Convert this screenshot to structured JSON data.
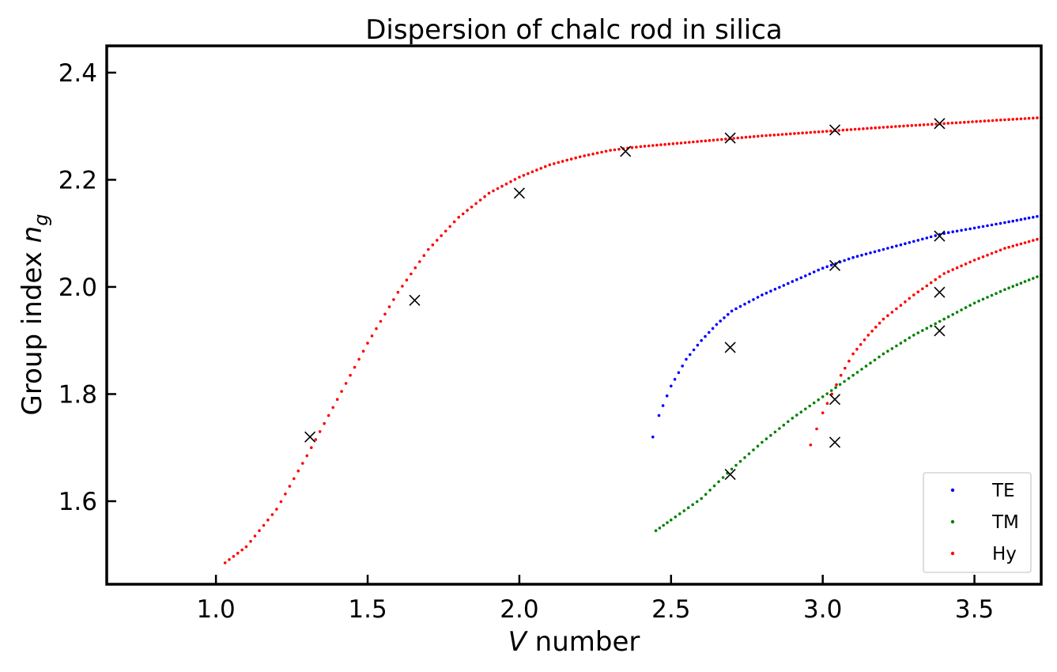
{
  "chart_data": {
    "type": "scatter",
    "title": "Dispersion of chalc rod in silica",
    "xlabel": {
      "italic": "V",
      "rest": " number"
    },
    "ylabel": {
      "text": "Group index ",
      "var": "n",
      "sub": "g"
    },
    "xlim": [
      0.64,
      3.72
    ],
    "ylim": [
      1.445,
      2.45
    ],
    "xticks": [
      1.0,
      1.5,
      2.0,
      2.5,
      3.0,
      3.5
    ],
    "xtick_labels": [
      "1.0",
      "1.5",
      "2.0",
      "2.5",
      "3.0",
      "3.5"
    ],
    "yticks": [
      1.6,
      1.8,
      2.0,
      2.2,
      2.4
    ],
    "ytick_labels": [
      "1.6",
      "1.8",
      "2.0",
      "2.2",
      "2.4"
    ],
    "grid": false,
    "legend_position": "bottom-right",
    "colors": {
      "TE": "#0000ff",
      "TM": "#008000",
      "Hy": "#ff0000",
      "markers": "#000000"
    },
    "series": [
      {
        "name": "TE",
        "color": "#0000ff",
        "points": [
          [
            2.44,
            1.72
          ],
          [
            2.46,
            1.76
          ],
          [
            2.5,
            1.815
          ],
          [
            2.55,
            1.865
          ],
          [
            2.6,
            1.9
          ],
          [
            2.65,
            1.93
          ],
          [
            2.7,
            1.955
          ],
          [
            2.8,
            1.985
          ],
          [
            2.9,
            2.01
          ],
          [
            3.0,
            2.035
          ],
          [
            3.1,
            2.055
          ],
          [
            3.2,
            2.07
          ],
          [
            3.3,
            2.085
          ],
          [
            3.4,
            2.1
          ],
          [
            3.5,
            2.11
          ],
          [
            3.6,
            2.12
          ],
          [
            3.72,
            2.133
          ]
        ]
      },
      {
        "name": "TM",
        "color": "#008000",
        "points": [
          [
            2.45,
            1.545
          ],
          [
            2.5,
            1.565
          ],
          [
            2.6,
            1.605
          ],
          [
            2.7,
            1.66
          ],
          [
            2.8,
            1.71
          ],
          [
            2.9,
            1.755
          ],
          [
            3.0,
            1.795
          ],
          [
            3.1,
            1.835
          ],
          [
            3.2,
            1.875
          ],
          [
            3.3,
            1.91
          ],
          [
            3.4,
            1.94
          ],
          [
            3.5,
            1.97
          ],
          [
            3.6,
            1.995
          ],
          [
            3.72,
            2.022
          ]
        ]
      },
      {
        "name": "Hy",
        "color": "#ff0000",
        "points": [
          [
            1.03,
            1.485
          ],
          [
            1.1,
            1.515
          ],
          [
            1.2,
            1.585
          ],
          [
            1.3,
            1.685
          ],
          [
            1.4,
            1.79
          ],
          [
            1.5,
            1.895
          ],
          [
            1.6,
            1.99
          ],
          [
            1.7,
            2.07
          ],
          [
            1.8,
            2.13
          ],
          [
            1.9,
            2.175
          ],
          [
            2.0,
            2.205
          ],
          [
            2.1,
            2.228
          ],
          [
            2.2,
            2.243
          ],
          [
            2.3,
            2.255
          ],
          [
            2.4,
            2.262
          ],
          [
            2.6,
            2.272
          ],
          [
            2.8,
            2.282
          ],
          [
            3.0,
            2.29
          ],
          [
            3.2,
            2.298
          ],
          [
            3.4,
            2.305
          ],
          [
            3.6,
            2.312
          ],
          [
            3.72,
            2.316
          ]
        ]
      },
      {
        "name": "Hy",
        "color": "#ff0000",
        "points": [
          [
            2.96,
            1.705
          ],
          [
            2.98,
            1.735
          ],
          [
            3.0,
            1.765
          ],
          [
            3.03,
            1.8
          ],
          [
            3.06,
            1.835
          ],
          [
            3.1,
            1.875
          ],
          [
            3.15,
            1.91
          ],
          [
            3.2,
            1.94
          ],
          [
            3.3,
            1.985
          ],
          [
            3.4,
            2.025
          ],
          [
            3.5,
            2.05
          ],
          [
            3.6,
            2.072
          ],
          [
            3.72,
            2.091
          ]
        ]
      }
    ],
    "markers": [
      [
        1.31,
        1.72
      ],
      [
        1.655,
        1.975
      ],
      [
        2.0,
        2.175
      ],
      [
        2.35,
        2.253
      ],
      [
        2.695,
        2.278
      ],
      [
        2.695,
        1.887
      ],
      [
        2.695,
        1.65
      ],
      [
        3.04,
        2.293
      ],
      [
        3.04,
        2.04
      ],
      [
        3.04,
        1.79
      ],
      [
        3.04,
        1.71
      ],
      [
        3.385,
        2.305
      ],
      [
        3.385,
        2.095
      ],
      [
        3.385,
        1.99
      ],
      [
        3.385,
        1.918
      ]
    ],
    "legend": [
      {
        "label": "TE",
        "color": "#0000ff"
      },
      {
        "label": "TM",
        "color": "#008000"
      },
      {
        "label": "Hy",
        "color": "#ff0000"
      }
    ]
  }
}
